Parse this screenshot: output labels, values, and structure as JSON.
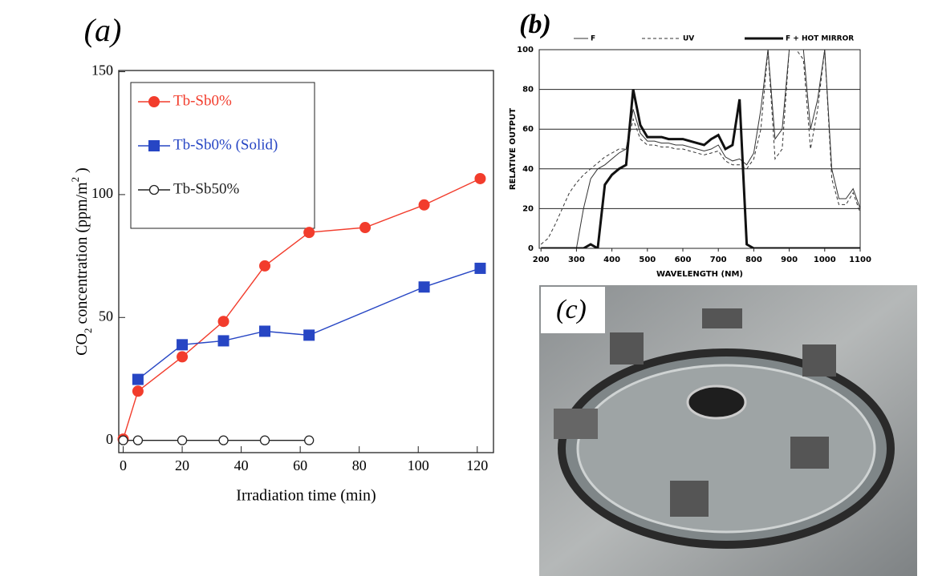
{
  "chart_data": [
    {
      "type": "line",
      "label": "(a)",
      "x_label": "Irradiation time (min)",
      "y_label": [
        "CO",
        "2",
        " concentration  (ppm/m",
        "2",
        " )"
      ],
      "xlim": [
        -1.5,
        125.5
      ],
      "xticks": [
        0,
        20,
        40,
        60,
        80,
        100,
        120
      ],
      "ylim": [
        -5,
        150.5
      ],
      "yticks": [
        0,
        50,
        100,
        150
      ],
      "series": [
        {
          "name": "Tb-Sb0%",
          "color": "#f23c2c",
          "marker": "circle",
          "x": [
            0,
            5,
            20,
            34,
            48,
            63,
            82,
            102,
            121
          ],
          "values": [
            0.5,
            20,
            34,
            48.4,
            71,
            84.6,
            86.6,
            95.8,
            106.5
          ]
        },
        {
          "name": "Tb-Sb0% (Solid)",
          "color": "#2746c4",
          "marker": "square",
          "x": [
            5,
            20,
            34,
            48,
            63,
            102,
            121
          ],
          "values": [
            24.8,
            38.9,
            40.5,
            44.4,
            42.8,
            62.4,
            70
          ]
        },
        {
          "name": "Tb-Sb50%",
          "color": "#222222",
          "marker": "open-circle",
          "x": [
            0,
            5,
            20,
            34,
            48,
            63
          ],
          "values": [
            0,
            0,
            0,
            0,
            0,
            0
          ]
        }
      ]
    },
    {
      "type": "line",
      "label": "(b)",
      "x_label": "WAVELENGTH (NM)",
      "y_label": "RELATIVE OUTPUT",
      "grid": true,
      "xlim": [
        195,
        1100
      ],
      "xticks": [
        200,
        300,
        400,
        500,
        600,
        700,
        800,
        900,
        1000,
        1100
      ],
      "ylim": [
        0,
        100
      ],
      "yticks": [
        0,
        20,
        40,
        60,
        80,
        100
      ],
      "x": [
        200,
        220,
        240,
        260,
        280,
        300,
        320,
        340,
        360,
        380,
        400,
        420,
        440,
        460,
        480,
        500,
        520,
        540,
        560,
        580,
        600,
        620,
        640,
        660,
        680,
        700,
        720,
        740,
        760,
        780,
        800,
        820,
        840,
        860,
        880,
        900,
        920,
        940,
        960,
        980,
        1000,
        1020,
        1040,
        1060,
        1080,
        1100
      ],
      "series": [
        {
          "name": "F",
          "color": "#333333",
          "width": 1,
          "dash": "none",
          "values": [
            0,
            0,
            0,
            0,
            0,
            0,
            20,
            35,
            40,
            42,
            45,
            48,
            50,
            70,
            58,
            54,
            54,
            53,
            53,
            52,
            52,
            51,
            50,
            49,
            50,
            52,
            46,
            44,
            45,
            42,
            48,
            70,
            100,
            55,
            60,
            100,
            100,
            100,
            60,
            75,
            100,
            40,
            25,
            25,
            30,
            20
          ]
        },
        {
          "name": "UV",
          "color": "#333333",
          "width": 1,
          "dash": "4 3",
          "values": [
            2,
            5,
            12,
            20,
            28,
            33,
            37,
            40,
            43,
            46,
            48,
            50,
            50,
            65,
            55,
            52,
            52,
            51,
            51,
            50,
            50,
            49,
            48,
            47,
            48,
            49,
            44,
            42,
            42,
            40,
            45,
            60,
            100,
            45,
            50,
            100,
            100,
            95,
            50,
            70,
            100,
            35,
            22,
            22,
            28,
            18
          ]
        },
        {
          "name": "F + HOT MIRROR",
          "color": "#111111",
          "width": 3,
          "dash": "none",
          "values": [
            0,
            0,
            0,
            0,
            0,
            0,
            0,
            2,
            0,
            32,
            37,
            40,
            42,
            80,
            62,
            56,
            56,
            56,
            55,
            55,
            55,
            54,
            53,
            52,
            55,
            57,
            50,
            52,
            75,
            2,
            0,
            0,
            0,
            0,
            0,
            0,
            0,
            0,
            0,
            0,
            0,
            0,
            0,
            0,
            0,
            0
          ]
        }
      ]
    }
  ],
  "photo": {
    "label": "(c)"
  }
}
